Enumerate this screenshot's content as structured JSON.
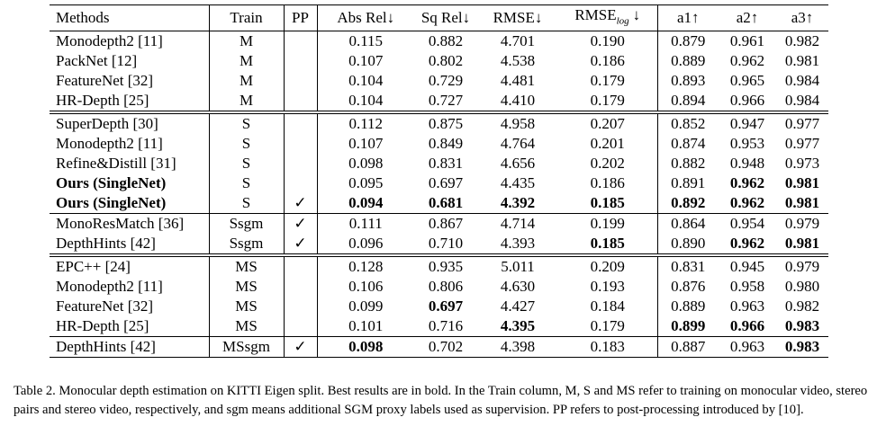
{
  "table": {
    "header": [
      "Methods",
      "Train",
      "PP",
      "Abs Rel↓",
      "Sq Rel↓",
      "RMSE↓",
      {
        "text": "RMSE",
        "sub": "log",
        "after": "↓"
      },
      "a1↑",
      "a2↑",
      "a3↑"
    ],
    "groups": [
      {
        "rows": [
          {
            "cells": [
              "Monodepth2 [11]",
              "M",
              null,
              "0.115",
              "0.882",
              "4.701",
              "0.190",
              "0.879",
              "0.961",
              "0.982"
            ],
            "bold": []
          },
          {
            "cells": [
              "PackNet [12]",
              "M",
              null,
              "0.107",
              "0.802",
              "4.538",
              "0.186",
              "0.889",
              "0.962",
              "0.981"
            ],
            "bold": []
          },
          {
            "cells": [
              "FeatureNet [32]",
              "M",
              null,
              "0.104",
              "0.729",
              "4.481",
              "0.179",
              "0.893",
              "0.965",
              "0.984"
            ],
            "bold": []
          },
          {
            "cells": [
              "HR-Depth [25]",
              "M",
              null,
              "0.104",
              "0.727",
              "4.410",
              "0.179",
              "0.894",
              "0.966",
              "0.984"
            ],
            "bold": []
          }
        ]
      },
      {
        "rows": [
          {
            "cells": [
              "SuperDepth [30]",
              "S",
              null,
              "0.112",
              "0.875",
              "4.958",
              "0.207",
              "0.852",
              "0.947",
              "0.977"
            ],
            "bold": []
          },
          {
            "cells": [
              "Monodepth2 [11]",
              "S",
              null,
              "0.107",
              "0.849",
              "4.764",
              "0.201",
              "0.874",
              "0.953",
              "0.977"
            ],
            "bold": []
          },
          {
            "cells": [
              "Refine&Distill [31]",
              "S",
              null,
              "0.098",
              "0.831",
              "4.656",
              "0.202",
              "0.882",
              "0.948",
              "0.973"
            ],
            "bold": []
          },
          {
            "cells": [
              "Ours (SingleNet)",
              "S",
              null,
              "0.095",
              "0.697",
              "4.435",
              "0.186",
              "0.891",
              "0.962",
              "0.981"
            ],
            "bold": [
              0,
              8,
              9
            ]
          },
          {
            "cells": [
              "Ours (SingleNet)",
              "S",
              "✓",
              "0.094",
              "0.681",
              "4.392",
              "0.185",
              "0.892",
              "0.962",
              "0.981"
            ],
            "bold": [
              0,
              3,
              4,
              5,
              6,
              7,
              8,
              9
            ]
          }
        ]
      },
      {
        "rows": [
          {
            "cells": [
              "MonoResMatch [36]",
              "Ssgm",
              "✓",
              "0.111",
              "0.867",
              "4.714",
              "0.199",
              "0.864",
              "0.954",
              "0.979"
            ],
            "bold": []
          },
          {
            "cells": [
              "DepthHints [42]",
              "Ssgm",
              "✓",
              "0.096",
              "0.710",
              "4.393",
              "0.185",
              "0.890",
              "0.962",
              "0.981"
            ],
            "bold": [
              6,
              8,
              9
            ]
          }
        ]
      },
      {
        "rows": [
          {
            "cells": [
              "EPC++ [24]",
              "MS",
              null,
              "0.128",
              "0.935",
              "5.011",
              "0.209",
              "0.831",
              "0.945",
              "0.979"
            ],
            "bold": []
          },
          {
            "cells": [
              "Monodepth2 [11]",
              "MS",
              null,
              "0.106",
              "0.806",
              "4.630",
              "0.193",
              "0.876",
              "0.958",
              "0.980"
            ],
            "bold": []
          },
          {
            "cells": [
              "FeatureNet [32]",
              "MS",
              null,
              "0.099",
              "0.697",
              "4.427",
              "0.184",
              "0.889",
              "0.963",
              "0.982"
            ],
            "bold": [
              4
            ]
          },
          {
            "cells": [
              "HR-Depth [25]",
              "MS",
              null,
              "0.101",
              "0.716",
              "4.395",
              "0.179",
              "0.899",
              "0.966",
              "0.983"
            ],
            "bold": [
              5,
              7,
              8,
              9
            ]
          }
        ]
      },
      {
        "rows": [
          {
            "cells": [
              "DepthHints [42]",
              "MSsgm",
              "✓",
              "0.098",
              "0.702",
              "4.398",
              "0.183",
              "0.887",
              "0.963",
              "0.983"
            ],
            "bold": [
              3,
              9
            ]
          }
        ]
      }
    ]
  },
  "caption": "Table 2. Monocular depth estimation on KITTI Eigen split. Best results are in bold. In the Train column, M, S and MS refer to training on monocular video, stereo pairs and stereo video, respectively, and sgm means additional SGM proxy labels used as supervision. PP refers to post-processing introduced by [10]."
}
